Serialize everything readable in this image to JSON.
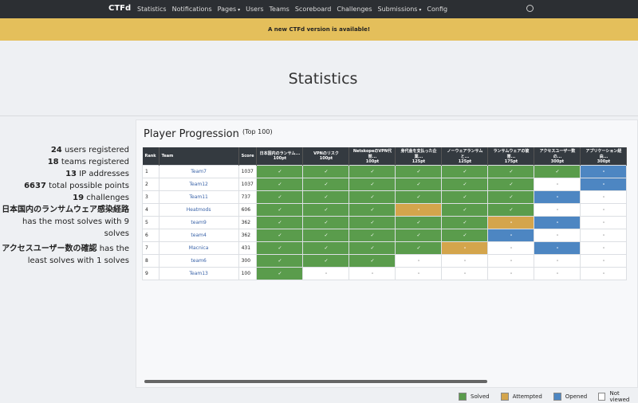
{
  "navbar": {
    "brand": "CTFd",
    "links": [
      "Statistics",
      "Notifications",
      "Pages",
      "Users",
      "Teams",
      "Scoreboard",
      "Challenges",
      "Submissions",
      "Config"
    ]
  },
  "banner": "A new CTFd version is available!",
  "title": "Statistics",
  "stats": [
    {
      "number": 24,
      "text": "users registered"
    },
    {
      "number": 18,
      "text": "teams registered"
    },
    {
      "number": 13,
      "text": "IP addresses"
    }
  ],
  "points": [
    {
      "number": 6637,
      "text": "total possible points"
    },
    {
      "number": 19,
      "text": "challenges"
    }
  ],
  "most_solved": {
    "name": "日本国内のランサムウェア感染経路",
    "text": "has the most solves with",
    "count": "9 solves"
  },
  "least_solved": {
    "name": "アクセスユーザー数の確認",
    "text": "has the least solves with",
    "count": "1 solves"
  },
  "progression": {
    "title": "Player Progression",
    "subtitle": "(Top 100)",
    "headers": [
      "Rank",
      "Team",
      "Score"
    ],
    "challenges": [
      {
        "name": "日本国内のランサム...",
        "points": "100pt"
      },
      {
        "name": "VPNのリスク",
        "points": "100pt"
      },
      {
        "name": "NetskopeのVPN代替...",
        "points": "100pt"
      },
      {
        "name": "身代金を支払った企業...",
        "points": "125pt"
      },
      {
        "name": "ノーウェアランサムと...",
        "points": "125pt"
      },
      {
        "name": "ランサムウェアの被害...",
        "points": "175pt"
      },
      {
        "name": "アクセスユーザー数の...",
        "points": "300pt"
      },
      {
        "name": "アプリケーション経由...",
        "points": "300pt"
      }
    ],
    "rows": [
      {
        "rank": 1,
        "team": "Team7",
        "score": 1037,
        "cells": [
          "✓",
          "✓",
          "✓",
          "✓",
          "✓",
          "✓",
          "✓",
          "-"
        ],
        "status": [
          "Solved",
          "Solved",
          "Solved",
          "Solved",
          "Solved",
          "Solved",
          "Solved",
          "Opened"
        ]
      },
      {
        "rank": 2,
        "team": "Team12",
        "score": 1037,
        "cells": [
          "✓",
          "✓",
          "✓",
          "✓",
          "✓",
          "✓",
          "-",
          "-"
        ],
        "status": [
          "Solved",
          "Solved",
          "Solved",
          "Solved",
          "Solved",
          "Solved",
          "Not viewed",
          "Opened"
        ]
      },
      {
        "rank": 3,
        "team": "Team11",
        "score": 737,
        "cells": [
          "✓",
          "✓",
          "✓",
          "✓",
          "✓",
          "✓",
          "-",
          "-"
        ],
        "status": [
          "Solved",
          "Solved",
          "Solved",
          "Solved",
          "Solved",
          "Solved",
          "Opened",
          "Not viewed"
        ]
      },
      {
        "rank": 4,
        "team": "Heatmods",
        "score": 606,
        "cells": [
          "✓",
          "✓",
          "✓",
          "-",
          "✓",
          "✓",
          "-",
          "-"
        ],
        "status": [
          "Solved",
          "Solved",
          "Solved",
          "Attempted",
          "Solved",
          "Solved",
          "Not viewed",
          "Not viewed"
        ]
      },
      {
        "rank": 5,
        "team": "team9",
        "score": 362,
        "cells": [
          "✓",
          "✓",
          "✓",
          "✓",
          "✓",
          "-",
          "-",
          "-"
        ],
        "status": [
          "Solved",
          "Solved",
          "Solved",
          "Solved",
          "Solved",
          "Attempted",
          "Opened",
          "Not viewed"
        ]
      },
      {
        "rank": 6,
        "team": "team4",
        "score": 362,
        "cells": [
          "✓",
          "✓",
          "✓",
          "✓",
          "✓",
          "-",
          "-",
          "-"
        ],
        "status": [
          "Solved",
          "Solved",
          "Solved",
          "Solved",
          "Solved",
          "Opened",
          "Not viewed",
          "Not viewed"
        ]
      },
      {
        "rank": 7,
        "team": "Macnica",
        "score": 431,
        "cells": [
          "✓",
          "✓",
          "✓",
          "✓",
          "-",
          "-",
          "-",
          "-"
        ],
        "status": [
          "Solved",
          "Solved",
          "Solved",
          "Solved",
          "Attempted",
          "Not viewed",
          "Opened",
          "Not viewed"
        ]
      },
      {
        "rank": 8,
        "team": "team6",
        "score": 300,
        "cells": [
          "✓",
          "✓",
          "✓",
          "-",
          "-",
          "-",
          "-",
          "-"
        ],
        "status": [
          "Solved",
          "Solved",
          "Solved",
          "Not viewed",
          "Not viewed",
          "Not viewed",
          "Not viewed",
          "Not viewed"
        ]
      },
      {
        "rank": 9,
        "team": "Team13",
        "score": 100,
        "cells": [
          "✓",
          "-",
          "-",
          "-",
          "-",
          "-",
          "-",
          "-"
        ],
        "status": [
          "Solved",
          "Not viewed",
          "Not viewed",
          "Not viewed",
          "Not viewed",
          "Not viewed",
          "Not viewed",
          "Not viewed"
        ]
      }
    ]
  },
  "legend": [
    {
      "label": "Solved",
      "color": "#5a9c4c"
    },
    {
      "label": "Attempted",
      "color": "#d4a54c"
    },
    {
      "label": "Opened",
      "color": "#4d86c2"
    },
    {
      "label": "Not viewed",
      "color": "#ffffff"
    }
  ]
}
